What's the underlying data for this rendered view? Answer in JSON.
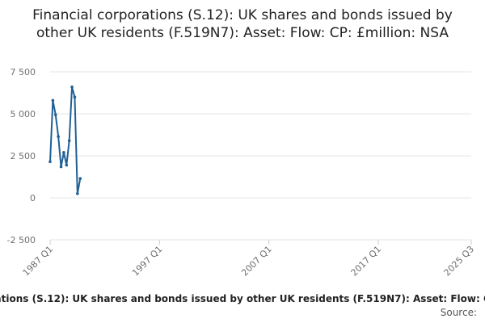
{
  "chart_data": {
    "type": "line",
    "title": "Financial corporations (S.12): UK shares and bonds issued by other UK residents (F.519N7): Asset: Flow: CP: £million: NSA",
    "source_label": "Source:",
    "x": [
      1987,
      1987.25,
      1987.5,
      1987.75,
      1988,
      1988.25,
      1988.5,
      1988.75,
      1989,
      1989.25,
      1989.5,
      1989.75
    ],
    "series": [
      {
        "color": "#206095",
        "values": [
          2150,
          5800,
          4950,
          3650,
          1850,
          2700,
          1950,
          3400,
          6600,
          6000,
          250,
          1150
        ]
      }
    ],
    "xlim": [
      1987,
      2025.5
    ],
    "xticks": [
      {
        "value": 1987,
        "label": "1987 Q1"
      },
      {
        "value": 1997,
        "label": "1997 Q1"
      },
      {
        "value": 2007,
        "label": "2007 Q1"
      },
      {
        "value": 2017,
        "label": "2017 Q1"
      },
      {
        "value": 2025.5,
        "label": "2025 Q3"
      }
    ],
    "ylim": [
      -2500,
      7500
    ],
    "yticks": [
      {
        "value": -2500,
        "label": "-2 500"
      },
      0,
      {
        "value": 2500,
        "label": "2 500"
      },
      {
        "value": 5000,
        "label": "5 000"
      },
      {
        "value": 7500,
        "label": "7 500"
      }
    ],
    "grid": true
  }
}
